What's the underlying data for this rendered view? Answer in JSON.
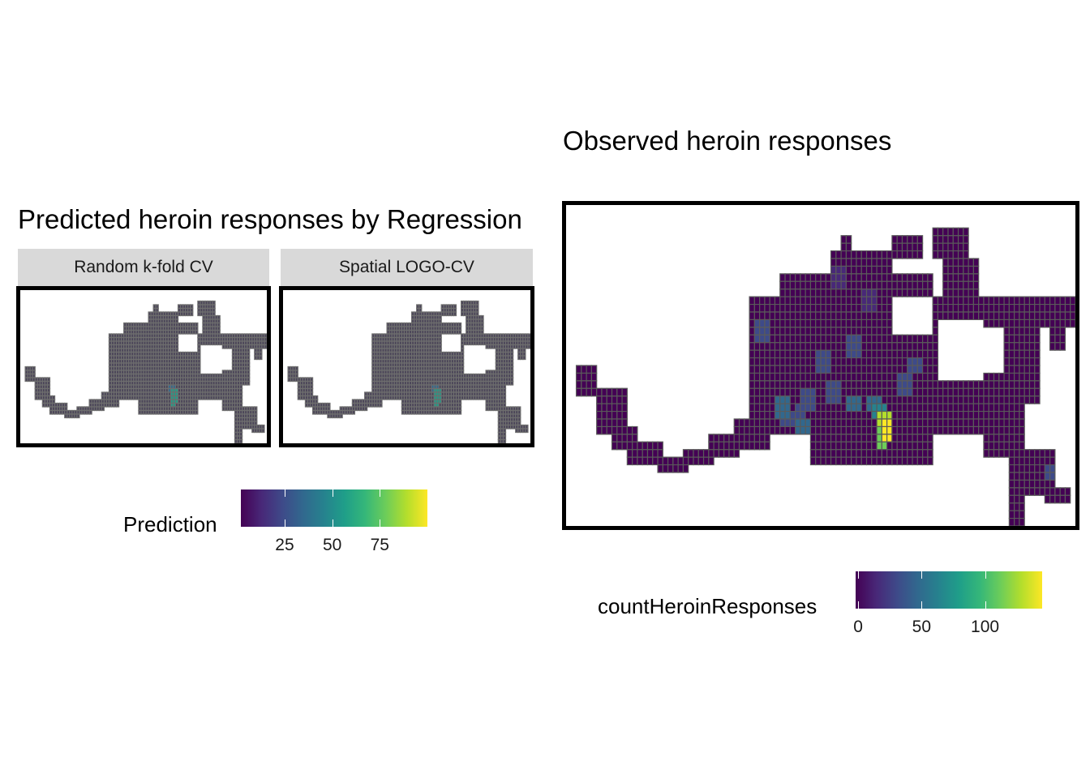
{
  "predicted": {
    "title": "Predicted heroin responses by Regression",
    "facets": [
      {
        "label": "Random k-fold CV"
      },
      {
        "label": "Spatial LOGO-CV"
      }
    ],
    "legend": {
      "title": "Prediction",
      "ticks": [
        "25",
        "50",
        "75"
      ],
      "tick_values": [
        25,
        50,
        75
      ],
      "range": [
        2,
        100
      ]
    }
  },
  "observed": {
    "title": "Observed heroin responses",
    "legend": {
      "title": "countHeroinResponses",
      "ticks": [
        "0",
        "50",
        "100"
      ],
      "tick_values": [
        0,
        50,
        100
      ],
      "range": [
        -2,
        145
      ]
    }
  },
  "colors": {
    "viridis": [
      "#440154",
      "#482878",
      "#3E4A89",
      "#31688E",
      "#26828E",
      "#1F9E89",
      "#35B779",
      "#6DCD59",
      "#B4DE2C",
      "#FDE725"
    ],
    "predicted_fill": "#4a4458",
    "predicted_cell_border": "#6e6e6e",
    "observed_fill": "#440154",
    "observed_cell_border": "#5a5a5a",
    "frame": "#000000",
    "strip_bg": "#d9d9d9"
  }
}
